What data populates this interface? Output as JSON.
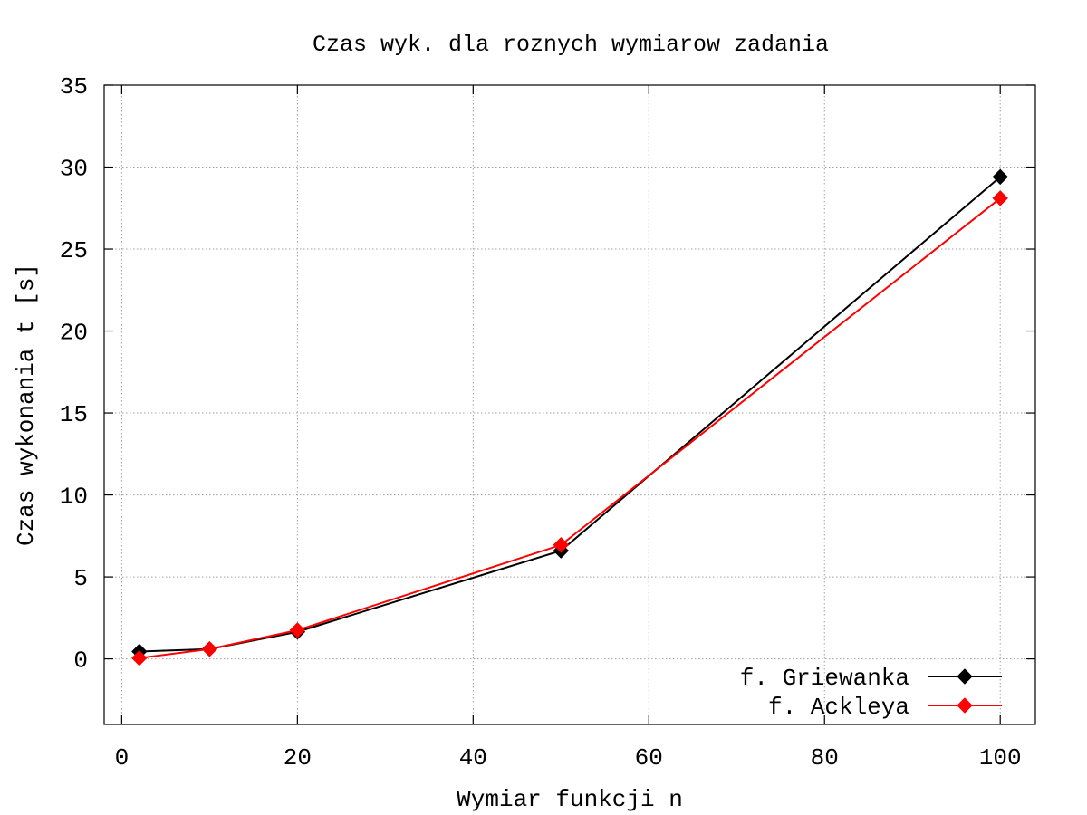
{
  "chart_data": {
    "type": "line",
    "title": "Czas wyk. dla roznych wymiarow zadania",
    "xlabel": "Wymiar funkcji n",
    "ylabel": "Czas wykonania t [s]",
    "xlim": [
      -2,
      104
    ],
    "ylim": [
      -4,
      35
    ],
    "xticks": [
      0,
      20,
      40,
      60,
      80,
      100
    ],
    "yticks": [
      0,
      5,
      10,
      15,
      20,
      25,
      30,
      35
    ],
    "grid": true,
    "legend_position": "bottom-right",
    "series": [
      {
        "name": "f. Griewanka",
        "color": "#000000",
        "marker": "diamond",
        "x": [
          2,
          10,
          20,
          50,
          100
        ],
        "y": [
          0.45,
          0.6,
          1.65,
          6.6,
          29.4
        ]
      },
      {
        "name": "f. Ackleya",
        "color": "#ff0000",
        "marker": "diamond",
        "x": [
          2,
          10,
          20,
          50,
          100
        ],
        "y": [
          0.05,
          0.6,
          1.75,
          6.95,
          28.1
        ]
      }
    ]
  }
}
